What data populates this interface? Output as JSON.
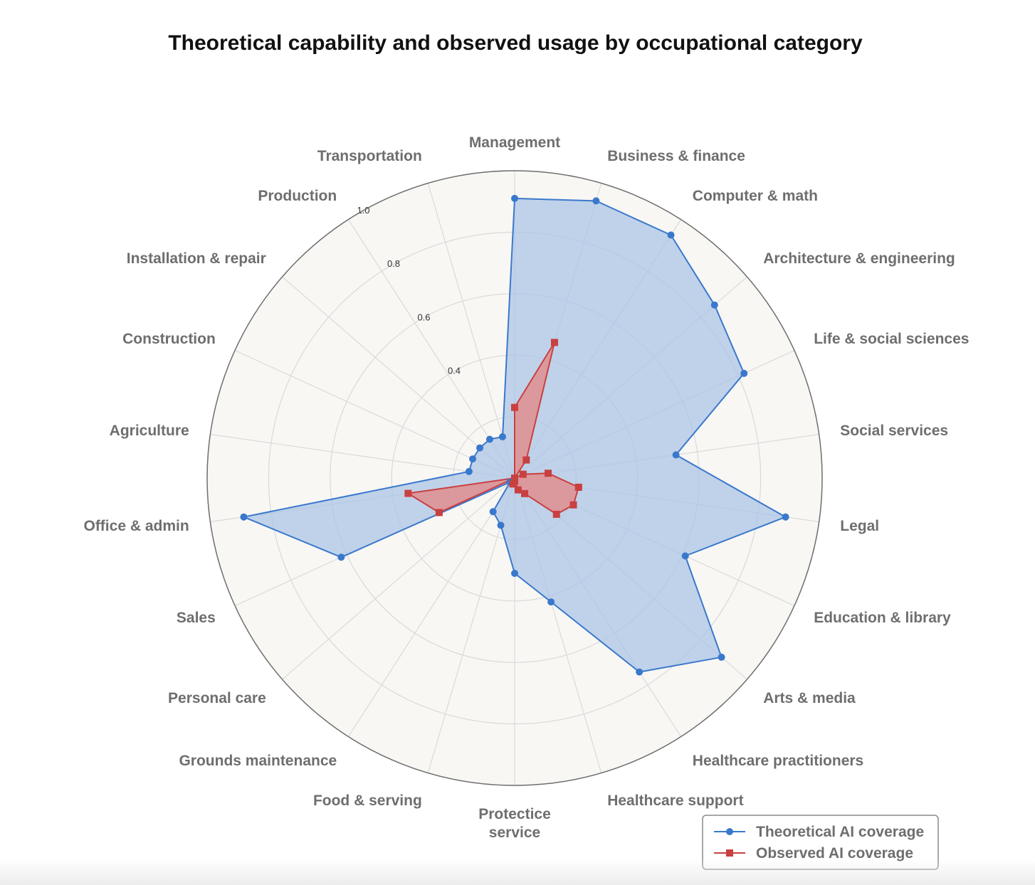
{
  "chart_data": {
    "type": "radar",
    "title": "Theoretical capability and observed usage by occupational category",
    "categories": [
      "Management",
      "Business & finance",
      "Computer & math",
      "Architecture & engineering",
      "Life & social sciences",
      "Social services",
      "Legal",
      "Education & library",
      "Arts & media",
      "Healthcare practitioners",
      "Healthcare support",
      "Protectice service",
      "Food & serving",
      "Grounds maintenance",
      "Personal care",
      "Sales",
      "Office & admin",
      "Agriculture",
      "Construction",
      "Installation & repair",
      "Production",
      "Transportation"
    ],
    "radial_ticks": [
      "0.4",
      "0.6",
      "0.8",
      "1.0"
    ],
    "rlim": [
      0,
      1.0
    ],
    "series": [
      {
        "name": "Theoretical AI coverage",
        "color": "#3a78cc",
        "fill": "#a9c3e6",
        "marker": "circle",
        "values": [
          0.91,
          0.94,
          0.94,
          0.86,
          0.82,
          0.53,
          0.89,
          0.61,
          0.89,
          0.75,
          0.42,
          0.31,
          0.16,
          0.13,
          0.02,
          0.62,
          0.89,
          0.15,
          0.15,
          0.15,
          0.15,
          0.14
        ]
      },
      {
        "name": "Observed AI coverage",
        "color": "#c94040",
        "fill": "#e08c8c",
        "marker": "square",
        "values": [
          0.23,
          0.46,
          0.07,
          0.0,
          0.03,
          0.11,
          0.21,
          0.21,
          0.18,
          0.06,
          0.04,
          0.01,
          0.02,
          0.0,
          0.0,
          0.27,
          0.35,
          0.0,
          0.0,
          0.0,
          0.0,
          0.0
        ]
      }
    ],
    "legend_position": "bottom-right"
  }
}
